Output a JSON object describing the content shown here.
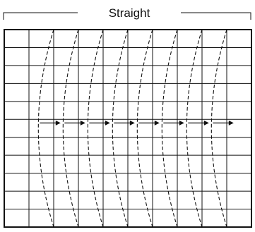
{
  "title": "Straight",
  "grid": {
    "columns": 10,
    "rows": 11
  },
  "curves": {
    "count": 8,
    "style": "dashed",
    "direction": "right"
  },
  "arrows": {
    "count": 8,
    "direction": "right"
  },
  "colors": {
    "line": "#111111",
    "background": "#ffffff"
  }
}
